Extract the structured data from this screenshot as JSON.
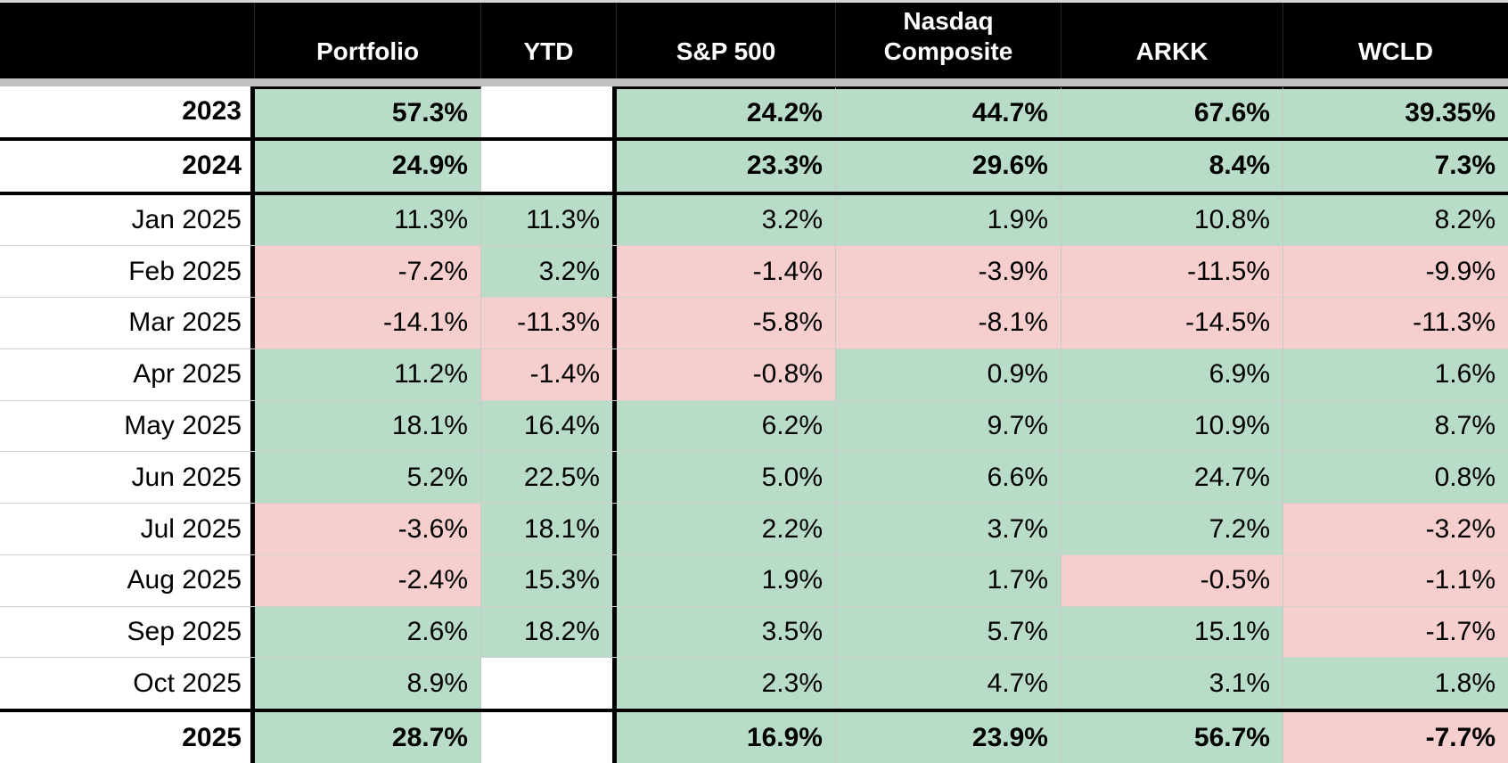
{
  "styles": {
    "positive_bg": "#b8dcc8",
    "negative_bg": "#f5cecd",
    "header_bg": "#000000",
    "header_text": "#ffffff",
    "separator_gray": "#c0c0c0",
    "thick_border": "#000000"
  },
  "chart_data": {
    "type": "table",
    "title": "Portfolio yearly and monthly returns vs benchmarks",
    "columns": [
      "",
      "Portfolio",
      "YTD",
      "S&P 500",
      "Nasdaq\nComposite",
      "ARKK",
      "WCLD"
    ],
    "rows": [
      {
        "label": "2023",
        "bold": true,
        "section_end": true,
        "cells": [
          {
            "value": "57.3%",
            "state": "positive"
          },
          {
            "value": "",
            "state": "blank"
          },
          {
            "value": "24.2%",
            "state": "positive"
          },
          {
            "value": "44.7%",
            "state": "positive"
          },
          {
            "value": "67.6%",
            "state": "positive"
          },
          {
            "value": "39.35%",
            "state": "positive"
          }
        ]
      },
      {
        "label": "2024",
        "bold": true,
        "section_end": true,
        "cells": [
          {
            "value": "24.9%",
            "state": "positive"
          },
          {
            "value": "",
            "state": "blank"
          },
          {
            "value": "23.3%",
            "state": "positive"
          },
          {
            "value": "29.6%",
            "state": "positive"
          },
          {
            "value": "8.4%",
            "state": "positive"
          },
          {
            "value": "7.3%",
            "state": "positive"
          }
        ]
      },
      {
        "label": "Jan 2025",
        "bold": false,
        "section_end": false,
        "cells": [
          {
            "value": "11.3%",
            "state": "positive"
          },
          {
            "value": "11.3%",
            "state": "positive"
          },
          {
            "value": "3.2%",
            "state": "positive"
          },
          {
            "value": "1.9%",
            "state": "positive"
          },
          {
            "value": "10.8%",
            "state": "positive"
          },
          {
            "value": "8.2%",
            "state": "positive"
          }
        ]
      },
      {
        "label": "Feb 2025",
        "bold": false,
        "section_end": false,
        "cells": [
          {
            "value": "-7.2%",
            "state": "negative"
          },
          {
            "value": "3.2%",
            "state": "positive"
          },
          {
            "value": "-1.4%",
            "state": "negative"
          },
          {
            "value": "-3.9%",
            "state": "negative"
          },
          {
            "value": "-11.5%",
            "state": "negative"
          },
          {
            "value": "-9.9%",
            "state": "negative"
          }
        ]
      },
      {
        "label": "Mar 2025",
        "bold": false,
        "section_end": false,
        "cells": [
          {
            "value": "-14.1%",
            "state": "negative"
          },
          {
            "value": "-11.3%",
            "state": "negative"
          },
          {
            "value": "-5.8%",
            "state": "negative"
          },
          {
            "value": "-8.1%",
            "state": "negative"
          },
          {
            "value": "-14.5%",
            "state": "negative"
          },
          {
            "value": "-11.3%",
            "state": "negative"
          }
        ]
      },
      {
        "label": "Apr 2025",
        "bold": false,
        "section_end": false,
        "cells": [
          {
            "value": "11.2%",
            "state": "positive"
          },
          {
            "value": "-1.4%",
            "state": "negative"
          },
          {
            "value": "-0.8%",
            "state": "negative"
          },
          {
            "value": "0.9%",
            "state": "positive"
          },
          {
            "value": "6.9%",
            "state": "positive"
          },
          {
            "value": "1.6%",
            "state": "positive"
          }
        ]
      },
      {
        "label": "May 2025",
        "bold": false,
        "section_end": false,
        "cells": [
          {
            "value": "18.1%",
            "state": "positive"
          },
          {
            "value": "16.4%",
            "state": "positive"
          },
          {
            "value": "6.2%",
            "state": "positive"
          },
          {
            "value": "9.7%",
            "state": "positive"
          },
          {
            "value": "10.9%",
            "state": "positive"
          },
          {
            "value": "8.7%",
            "state": "positive"
          }
        ]
      },
      {
        "label": "Jun 2025",
        "bold": false,
        "section_end": false,
        "cells": [
          {
            "value": "5.2%",
            "state": "positive"
          },
          {
            "value": "22.5%",
            "state": "positive"
          },
          {
            "value": "5.0%",
            "state": "positive"
          },
          {
            "value": "6.6%",
            "state": "positive"
          },
          {
            "value": "24.7%",
            "state": "positive"
          },
          {
            "value": "0.8%",
            "state": "positive"
          }
        ]
      },
      {
        "label": "Jul 2025",
        "bold": false,
        "section_end": false,
        "cells": [
          {
            "value": "-3.6%",
            "state": "negative"
          },
          {
            "value": "18.1%",
            "state": "positive"
          },
          {
            "value": "2.2%",
            "state": "positive"
          },
          {
            "value": "3.7%",
            "state": "positive"
          },
          {
            "value": "7.2%",
            "state": "positive"
          },
          {
            "value": "-3.2%",
            "state": "negative"
          }
        ]
      },
      {
        "label": "Aug 2025",
        "bold": false,
        "section_end": false,
        "cells": [
          {
            "value": "-2.4%",
            "state": "negative"
          },
          {
            "value": "15.3%",
            "state": "positive"
          },
          {
            "value": "1.9%",
            "state": "positive"
          },
          {
            "value": "1.7%",
            "state": "positive"
          },
          {
            "value": "-0.5%",
            "state": "negative"
          },
          {
            "value": "-1.1%",
            "state": "negative"
          }
        ]
      },
      {
        "label": "Sep 2025",
        "bold": false,
        "section_end": false,
        "cells": [
          {
            "value": "2.6%",
            "state": "positive"
          },
          {
            "value": "18.2%",
            "state": "positive"
          },
          {
            "value": "3.5%",
            "state": "positive"
          },
          {
            "value": "5.7%",
            "state": "positive"
          },
          {
            "value": "15.1%",
            "state": "positive"
          },
          {
            "value": "-1.7%",
            "state": "negative"
          }
        ]
      },
      {
        "label": "Oct 2025",
        "bold": false,
        "section_end": true,
        "cells": [
          {
            "value": "8.9%",
            "state": "positive"
          },
          {
            "value": "",
            "state": "blank"
          },
          {
            "value": "2.3%",
            "state": "positive"
          },
          {
            "value": "4.7%",
            "state": "positive"
          },
          {
            "value": "3.1%",
            "state": "positive"
          },
          {
            "value": "1.8%",
            "state": "positive"
          }
        ]
      },
      {
        "label": "2025",
        "bold": true,
        "section_end": false,
        "cells": [
          {
            "value": "28.7%",
            "state": "positive"
          },
          {
            "value": "",
            "state": "blank"
          },
          {
            "value": "16.9%",
            "state": "positive"
          },
          {
            "value": "23.9%",
            "state": "positive"
          },
          {
            "value": "56.7%",
            "state": "positive"
          },
          {
            "value": "-7.7%",
            "state": "negative"
          }
        ]
      }
    ]
  }
}
